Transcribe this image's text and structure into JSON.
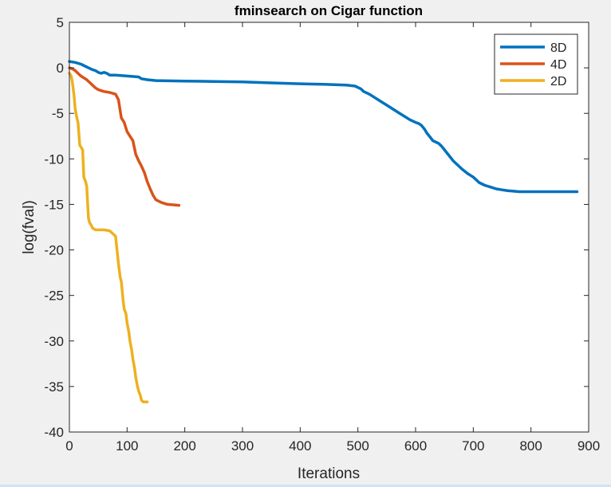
{
  "window": {
    "background": "#f0f0f0"
  },
  "chart_data": {
    "type": "line",
    "title": "fminsearch on Cigar function",
    "xlabel": "Iterations",
    "ylabel": "log(fval)",
    "xlim": [
      0,
      900
    ],
    "ylim": [
      -40,
      5
    ],
    "xticks": [
      0,
      100,
      200,
      300,
      400,
      500,
      600,
      700,
      800,
      900
    ],
    "yticks": [
      5,
      0,
      -5,
      -10,
      -15,
      -20,
      -25,
      -30,
      -35,
      -40
    ],
    "xtick_labels": [
      "0",
      "100",
      "200",
      "300",
      "400",
      "500",
      "600",
      "700",
      "800",
      "900"
    ],
    "ytick_labels": [
      "5",
      "0",
      "-5",
      "-10",
      "-15",
      "-20",
      "-25",
      "-30",
      "-35",
      "-40"
    ],
    "grid": false,
    "legend": {
      "placement": "top-right"
    },
    "series": [
      {
        "name": "8D",
        "color": "#0072bd",
        "x": [
          0,
          10,
          20,
          30,
          40,
          45,
          50,
          55,
          60,
          65,
          70,
          80,
          100,
          120,
          125,
          135,
          150,
          200,
          250,
          300,
          350,
          400,
          440,
          480,
          495,
          505,
          510,
          520,
          530,
          540,
          550,
          560,
          570,
          580,
          590,
          600,
          605,
          610,
          615,
          620,
          625,
          630,
          640,
          645,
          650,
          655,
          660,
          665,
          670,
          680,
          690,
          700,
          705,
          710,
          720,
          730,
          740,
          750,
          760,
          770,
          780,
          800,
          850,
          880
        ],
        "y": [
          0.7,
          0.6,
          0.4,
          0.1,
          -0.2,
          -0.3,
          -0.5,
          -0.6,
          -0.5,
          -0.6,
          -0.8,
          -0.8,
          -0.9,
          -1.0,
          -1.2,
          -1.3,
          -1.4,
          -1.45,
          -1.5,
          -1.55,
          -1.65,
          -1.75,
          -1.8,
          -1.9,
          -2.0,
          -2.3,
          -2.6,
          -2.9,
          -3.3,
          -3.7,
          -4.1,
          -4.5,
          -4.9,
          -5.3,
          -5.7,
          -6.0,
          -6.1,
          -6.3,
          -6.7,
          -7.2,
          -7.6,
          -8.0,
          -8.3,
          -8.6,
          -9.0,
          -9.4,
          -9.8,
          -10.2,
          -10.5,
          -11.1,
          -11.6,
          -12.0,
          -12.3,
          -12.6,
          -12.9,
          -13.1,
          -13.3,
          -13.4,
          -13.5,
          -13.55,
          -13.6,
          -13.6,
          -13.6,
          -13.6
        ]
      },
      {
        "name": "4D",
        "color": "#d95319",
        "x": [
          0,
          5,
          10,
          15,
          20,
          25,
          30,
          35,
          40,
          45,
          50,
          55,
          60,
          70,
          80,
          85,
          90,
          95,
          100,
          105,
          110,
          115,
          120,
          125,
          130,
          135,
          140,
          145,
          150,
          160,
          170,
          180,
          190
        ],
        "y": [
          0,
          -0.1,
          -0.3,
          -0.6,
          -0.9,
          -1.1,
          -1.3,
          -1.6,
          -1.9,
          -2.2,
          -2.4,
          -2.5,
          -2.6,
          -2.7,
          -2.9,
          -3.5,
          -5.5,
          -6.0,
          -7.0,
          -7.5,
          -8.0,
          -9.5,
          -10.2,
          -10.8,
          -11.5,
          -12.5,
          -13.3,
          -14.0,
          -14.5,
          -14.8,
          -15.0,
          -15.05,
          -15.1
        ]
      },
      {
        "name": "2D",
        "color": "#edb120",
        "x": [
          0,
          3,
          5,
          8,
          10,
          13,
          15,
          18,
          20,
          23,
          25,
          28,
          30,
          33,
          35,
          38,
          40,
          43,
          45,
          48,
          50,
          60,
          70,
          80,
          85,
          88,
          90,
          93,
          95,
          98,
          100,
          103,
          105,
          108,
          110,
          113,
          115,
          118,
          120,
          123,
          125,
          128,
          130,
          133,
          135
        ],
        "y": [
          -0.6,
          -0.9,
          -1.5,
          -3.0,
          -4.5,
          -5.5,
          -6.0,
          -8.5,
          -8.7,
          -9.0,
          -12.0,
          -12.5,
          -13.0,
          -16.5,
          -17.0,
          -17.3,
          -17.6,
          -17.7,
          -17.8,
          -17.8,
          -17.8,
          -17.8,
          -17.9,
          -18.5,
          -21.5,
          -23.0,
          -23.5,
          -25.5,
          -26.5,
          -27.0,
          -28.0,
          -29.0,
          -30.0,
          -31.0,
          -32.0,
          -33.0,
          -34.0,
          -35.0,
          -35.5,
          -36.0,
          -36.5,
          -36.7,
          -36.7,
          -36.7,
          -36.7
        ]
      }
    ]
  }
}
